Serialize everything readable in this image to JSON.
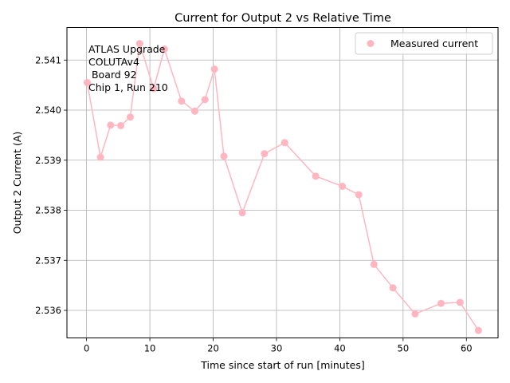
{
  "chart_data": {
    "type": "line",
    "title": "Current for Output 2 vs Relative Time",
    "xlabel": "Time since start of run [minutes]",
    "ylabel": "Output 2 Current (A)",
    "xlim": [
      -3.1,
      65
    ],
    "ylim": [
      2.53545,
      2.54165
    ],
    "xticks": [
      0,
      10,
      20,
      30,
      40,
      50,
      60
    ],
    "yticks": [
      2.536,
      2.537,
      2.538,
      2.539,
      2.54,
      2.541
    ],
    "ytick_labels": [
      "2.536",
      "2.537",
      "2.538",
      "2.539",
      "2.540",
      "2.541"
    ],
    "grid": true,
    "legend_position": "top-right",
    "annotation_lines": [
      "ATLAS Upgrade",
      "COLUTAv4",
      " Board 92",
      "Chip 1, Run 210"
    ],
    "series": [
      {
        "name": "Measured current",
        "color": "#ffb6c1",
        "x": [
          0.1,
          2.2,
          3.8,
          5.4,
          6.9,
          8.4,
          10.6,
          12.3,
          15.0,
          17.1,
          18.7,
          20.2,
          21.7,
          24.6,
          28.1,
          31.3,
          36.2,
          40.4,
          43.0,
          45.4,
          48.4,
          51.9,
          56.0,
          59.0,
          61.9
        ],
        "y": [
          2.54055,
          2.53906,
          2.5397,
          2.53969,
          2.53986,
          2.54133,
          2.54043,
          2.54122,
          2.54018,
          2.53998,
          2.54021,
          2.54082,
          2.53908,
          2.53795,
          2.53913,
          2.53935,
          2.53868,
          2.53848,
          2.53831,
          2.53692,
          2.53645,
          2.53593,
          2.53614,
          2.53616,
          2.5356
        ]
      }
    ]
  }
}
